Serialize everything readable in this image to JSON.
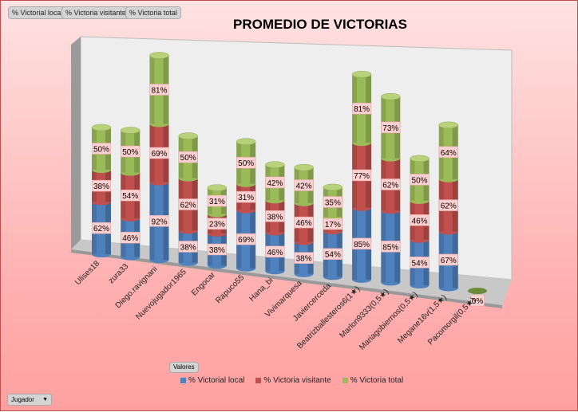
{
  "filter_buttons": [
    "% Victorial local",
    "% Victoria visitante",
    "% Victoria total"
  ],
  "values_button": "Valores",
  "row_field_dropdown": {
    "label": "Jugador",
    "icon": "dropdown-arrow-icon"
  },
  "colors": {
    "local": "#4f81bd",
    "visitante": "#c0504d",
    "total": "#9bbb59",
    "label_bg": "#ffd0d0"
  },
  "chart_data": {
    "type": "bar",
    "subtype": "3d-stacked-cylinder",
    "title": "PROMEDIO DE VICTORIAS",
    "legend_position": "bottom",
    "categories": [
      "Ulises18",
      "zura33",
      "Diego.ravignani",
      "Nuevojugador1965",
      "Engocar",
      "Rapuco55",
      "Hana_bi",
      "Vivimarquesa",
      "Javiercerceda",
      "Beatrizballesteros6(1★)",
      "Marlon9333(0,5★)",
      "Mariagobiernos(0,5★)",
      "Megane16v(1,5★)",
      "Pacomorgil(0,5★)"
    ],
    "series": [
      {
        "name": "% Victorial local",
        "key": "local",
        "values": [
          62,
          46,
          92,
          38,
          38,
          69,
          46,
          38,
          54,
          85,
          85,
          54,
          67,
          0
        ]
      },
      {
        "name": "% Victoria visitante",
        "key": "visitante",
        "values": [
          38,
          54,
          69,
          62,
          23,
          31,
          38,
          46,
          17,
          77,
          62,
          46,
          62,
          0
        ]
      },
      {
        "name": "% Victoria total",
        "key": "total",
        "values": [
          50,
          50,
          81,
          50,
          31,
          50,
          42,
          42,
          35,
          81,
          73,
          50,
          64,
          0
        ]
      }
    ],
    "value_suffix": "%"
  }
}
